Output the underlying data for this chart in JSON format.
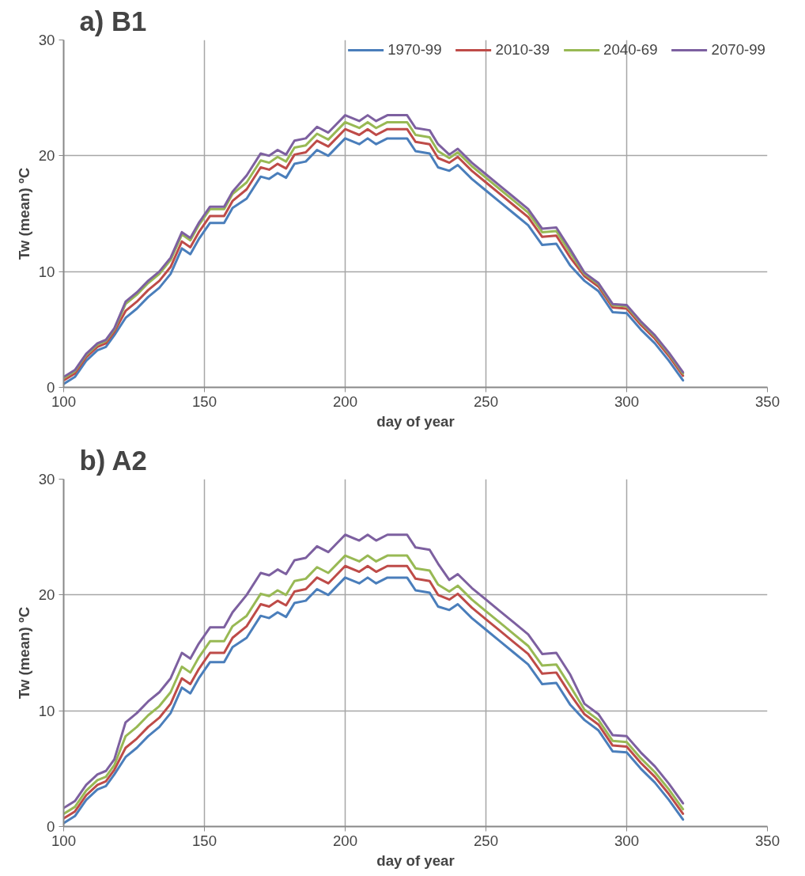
{
  "chart_data": [
    {
      "type": "line",
      "title": "a) B1",
      "xlabel": "day of year",
      "ylabel": "Tw (mean) ºC",
      "xlim": [
        100,
        350
      ],
      "xticks": [
        100,
        150,
        200,
        250,
        300,
        350
      ],
      "ylim": [
        0,
        30
      ],
      "yticks": [
        0,
        10,
        20,
        30
      ],
      "grid": true,
      "legend": "top right",
      "marker": "none",
      "line_style": "solid",
      "x": [
        100,
        104,
        108,
        112,
        115,
        118,
        122,
        126,
        130,
        134,
        138,
        142,
        145,
        148,
        152,
        157,
        160,
        165,
        170,
        173,
        176,
        179,
        182,
        186,
        190,
        194,
        200,
        205,
        208,
        211,
        215,
        222,
        225,
        230,
        233,
        237,
        240,
        245,
        250,
        255,
        260,
        265,
        270,
        275,
        280,
        285,
        290,
        295,
        300,
        305,
        310,
        315,
        320
      ],
      "series": [
        {
          "name": "1970-99",
          "color": "#4a7ebb",
          "values": [
            0.3,
            0.9,
            2.3,
            3.2,
            3.5,
            4.5,
            6.0,
            6.8,
            7.8,
            8.6,
            9.8,
            12.0,
            11.5,
            12.8,
            14.2,
            14.2,
            15.5,
            16.3,
            18.2,
            18.0,
            18.5,
            18.1,
            19.3,
            19.5,
            20.5,
            20.0,
            21.5,
            21.0,
            21.5,
            21.0,
            21.5,
            21.5,
            20.4,
            20.2,
            19.0,
            18.7,
            19.2,
            18.0,
            17.0,
            16.0,
            15.0,
            14.0,
            12.3,
            12.4,
            10.5,
            9.2,
            8.3,
            6.5,
            6.4,
            5.0,
            3.8,
            2.3,
            0.6
          ]
        },
        {
          "name": "2010-39",
          "color": "#be4b48",
          "values": [
            0.6,
            1.2,
            2.6,
            3.5,
            3.8,
            4.8,
            6.6,
            7.4,
            8.4,
            9.2,
            10.4,
            12.6,
            12.1,
            13.4,
            14.8,
            14.8,
            16.1,
            17.1,
            19.0,
            18.8,
            19.3,
            18.9,
            20.1,
            20.3,
            21.3,
            20.8,
            22.3,
            21.8,
            22.3,
            21.8,
            22.3,
            22.3,
            21.2,
            21.0,
            19.8,
            19.4,
            19.9,
            18.7,
            17.7,
            16.7,
            15.7,
            14.7,
            13.0,
            13.1,
            11.2,
            9.6,
            8.7,
            6.9,
            6.8,
            5.4,
            4.2,
            2.7,
            1.0
          ]
        },
        {
          "name": "2040-69",
          "color": "#98b954",
          "values": [
            0.8,
            1.4,
            2.8,
            3.7,
            4.0,
            5.0,
            7.2,
            8.0,
            9.0,
            9.8,
            11.0,
            13.2,
            12.7,
            14.0,
            15.4,
            15.4,
            16.7,
            17.7,
            19.6,
            19.4,
            19.9,
            19.5,
            20.7,
            20.9,
            21.9,
            21.4,
            22.9,
            22.4,
            22.9,
            22.4,
            22.9,
            22.9,
            21.8,
            21.6,
            20.4,
            19.8,
            20.3,
            19.1,
            18.1,
            17.1,
            16.1,
            15.1,
            13.4,
            13.5,
            11.6,
            9.8,
            8.9,
            7.1,
            7.0,
            5.6,
            4.4,
            2.9,
            1.2
          ]
        },
        {
          "name": "2070-99",
          "color": "#7d60a0",
          "values": [
            0.9,
            1.5,
            2.9,
            3.8,
            4.1,
            5.1,
            7.4,
            8.2,
            9.2,
            10.0,
            11.2,
            13.4,
            12.9,
            14.2,
            15.6,
            15.6,
            16.9,
            18.3,
            20.2,
            20.0,
            20.5,
            20.1,
            21.3,
            21.5,
            22.5,
            22.0,
            23.5,
            23.0,
            23.5,
            23.0,
            23.5,
            23.5,
            22.4,
            22.2,
            21.0,
            20.1,
            20.6,
            19.4,
            18.4,
            17.4,
            16.4,
            15.4,
            13.7,
            13.8,
            11.9,
            9.9,
            9.0,
            7.2,
            7.1,
            5.7,
            4.5,
            3.0,
            1.3
          ]
        }
      ]
    },
    {
      "type": "line",
      "title": "b) A2",
      "xlabel": "day of year",
      "ylabel": "Tw (mean) ºC",
      "xlim": [
        100,
        350
      ],
      "xticks": [
        100,
        150,
        200,
        250,
        300,
        350
      ],
      "ylim": [
        0,
        30
      ],
      "yticks": [
        0,
        10,
        20,
        30
      ],
      "grid": true,
      "marker": "none",
      "line_style": "solid",
      "x": [
        100,
        104,
        108,
        112,
        115,
        118,
        122,
        126,
        130,
        134,
        138,
        142,
        145,
        148,
        152,
        157,
        160,
        165,
        170,
        173,
        176,
        179,
        182,
        186,
        190,
        194,
        200,
        205,
        208,
        211,
        215,
        222,
        225,
        230,
        233,
        237,
        240,
        245,
        250,
        255,
        260,
        265,
        270,
        275,
        280,
        285,
        290,
        295,
        300,
        305,
        310,
        315,
        320
      ],
      "series": [
        {
          "color": "#4a7ebb",
          "values": [
            0.3,
            0.9,
            2.3,
            3.2,
            3.5,
            4.5,
            6.0,
            6.8,
            7.8,
            8.6,
            9.8,
            12.0,
            11.5,
            12.8,
            14.2,
            14.2,
            15.5,
            16.3,
            18.2,
            18.0,
            18.5,
            18.1,
            19.3,
            19.5,
            20.5,
            20.0,
            21.5,
            21.0,
            21.5,
            21.0,
            21.5,
            21.5,
            20.4,
            20.2,
            19.0,
            18.7,
            19.2,
            18.0,
            17.0,
            16.0,
            15.0,
            14.0,
            12.3,
            12.4,
            10.5,
            9.2,
            8.3,
            6.5,
            6.4,
            5.0,
            3.8,
            2.3,
            0.6
          ]
        },
        {
          "color": "#be4b48",
          "values": [
            0.7,
            1.3,
            2.7,
            3.6,
            3.9,
            4.9,
            6.8,
            7.6,
            8.6,
            9.4,
            10.6,
            12.8,
            12.3,
            13.6,
            15.0,
            15.0,
            16.3,
            17.3,
            19.2,
            19.0,
            19.5,
            19.1,
            20.3,
            20.5,
            21.5,
            21.0,
            22.5,
            22.0,
            22.5,
            22.0,
            22.5,
            22.5,
            21.4,
            21.2,
            20.0,
            19.6,
            20.1,
            18.9,
            17.9,
            16.9,
            15.9,
            14.9,
            13.2,
            13.3,
            11.4,
            9.7,
            8.8,
            7.0,
            6.9,
            5.5,
            4.3,
            2.8,
            1.1
          ]
        },
        {
          "color": "#98b954",
          "values": [
            1.1,
            1.7,
            3.1,
            4.0,
            4.3,
            5.3,
            7.8,
            8.6,
            9.6,
            10.4,
            11.6,
            13.8,
            13.3,
            14.6,
            16.0,
            16.0,
            17.3,
            18.2,
            20.1,
            19.9,
            20.4,
            20.0,
            21.2,
            21.4,
            22.4,
            21.9,
            23.4,
            22.9,
            23.4,
            22.9,
            23.4,
            23.4,
            22.3,
            22.1,
            20.9,
            20.3,
            20.8,
            19.6,
            18.6,
            17.6,
            16.6,
            15.6,
            13.9,
            14.0,
            12.1,
            10.1,
            9.2,
            7.4,
            7.3,
            5.9,
            4.7,
            3.2,
            1.5
          ]
        },
        {
          "color": "#7d60a0",
          "values": [
            1.6,
            2.2,
            3.6,
            4.5,
            4.8,
            5.8,
            9.0,
            9.8,
            10.8,
            11.6,
            12.8,
            15.0,
            14.5,
            15.8,
            17.2,
            17.2,
            18.5,
            20.0,
            21.9,
            21.7,
            22.2,
            21.8,
            23.0,
            23.2,
            24.2,
            23.7,
            25.2,
            24.7,
            25.2,
            24.7,
            25.2,
            25.2,
            24.1,
            23.9,
            22.7,
            21.3,
            21.8,
            20.6,
            19.6,
            18.6,
            17.6,
            16.6,
            14.9,
            15.0,
            13.1,
            10.6,
            9.7,
            7.9,
            7.8,
            6.4,
            5.2,
            3.7,
            2.0
          ]
        }
      ]
    }
  ]
}
